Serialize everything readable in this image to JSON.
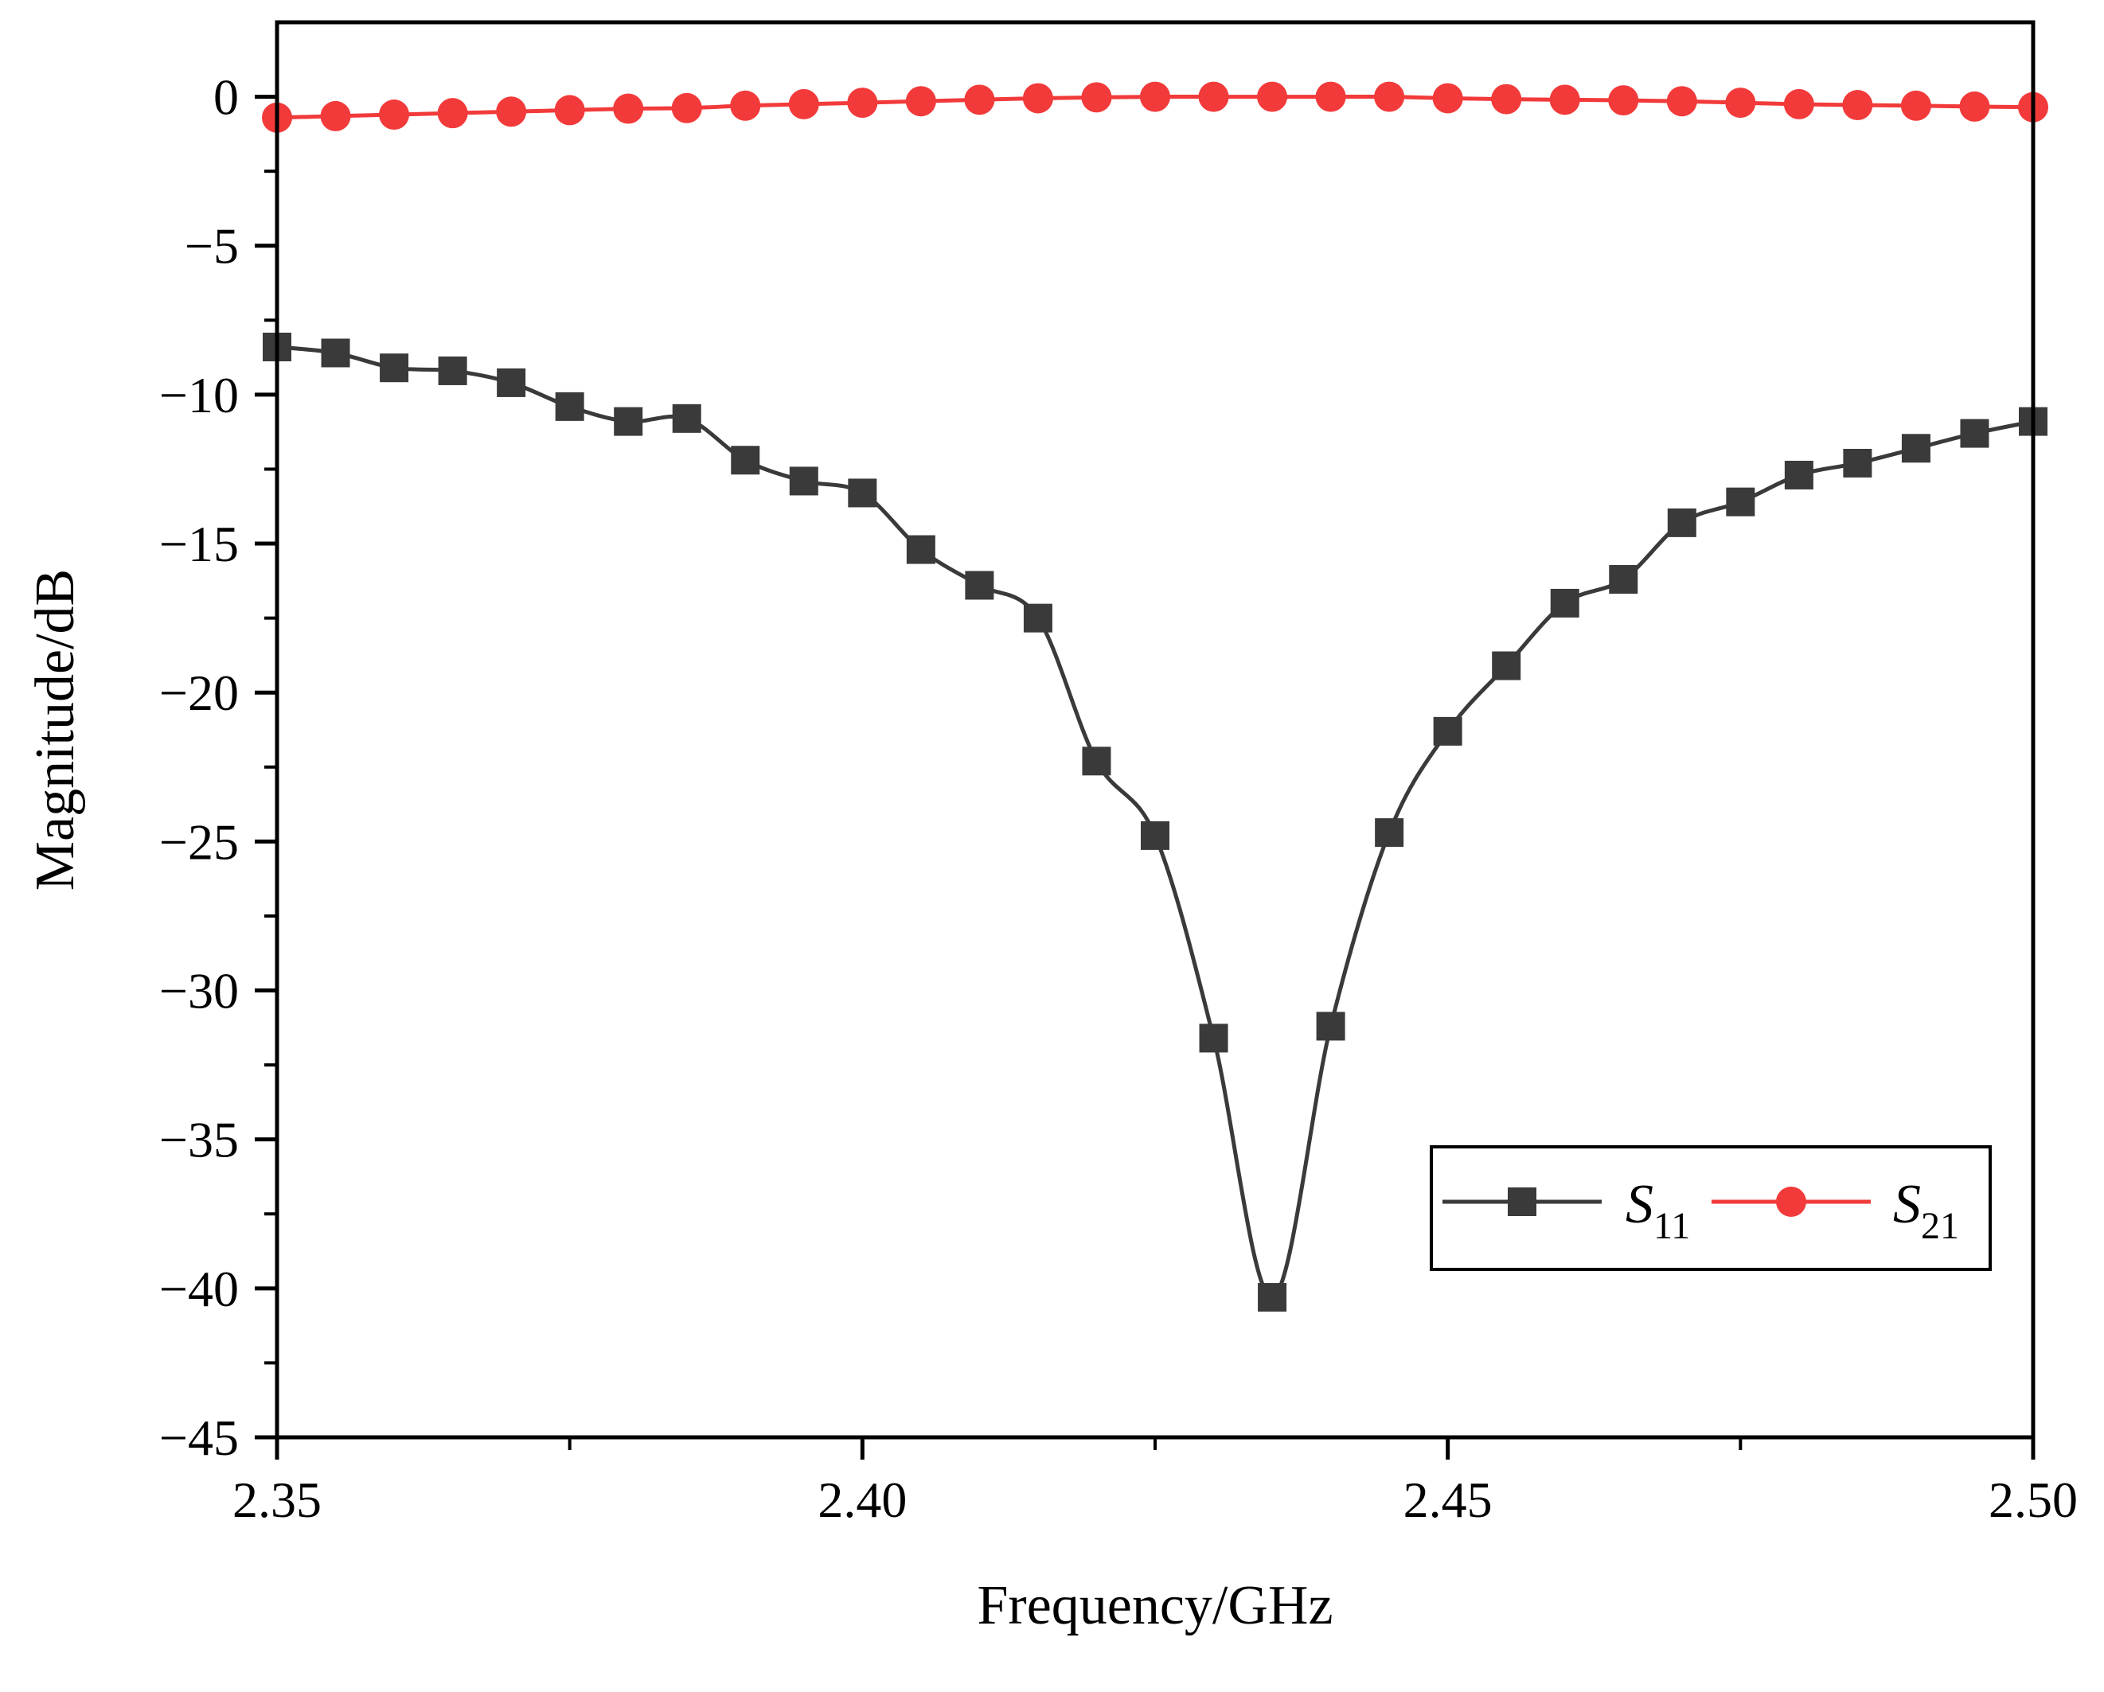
{
  "chart_data": {
    "type": "line",
    "xlabel": "Frequency/GHz",
    "ylabel": "Magnitude/dB",
    "xlim": [
      2.35,
      2.5
    ],
    "ylim": [
      -45,
      2.5
    ],
    "x_ticks": [
      2.35,
      2.4,
      2.45,
      2.5
    ],
    "x_tick_labels": [
      "2.35",
      "2.40",
      "2.45",
      "2.50"
    ],
    "y_ticks": [
      0,
      -5,
      -10,
      -15,
      -20,
      -25,
      -30,
      -35,
      -40,
      -45
    ],
    "y_tick_labels": [
      "0",
      "−5",
      "−10",
      "−15",
      "−20",
      "−25",
      "−30",
      "−35",
      "−40",
      "−45"
    ],
    "grid": false,
    "legend_position": "lower-right",
    "x": [
      2.35,
      2.355,
      2.36,
      2.365,
      2.37,
      2.375,
      2.38,
      2.385,
      2.39,
      2.395,
      2.4,
      2.405,
      2.41,
      2.415,
      2.42,
      2.425,
      2.43,
      2.435,
      2.44,
      2.445,
      2.45,
      2.455,
      2.46,
      2.465,
      2.47,
      2.475,
      2.48,
      2.485,
      2.49,
      2.495,
      2.5
    ],
    "series": [
      {
        "name": "S11",
        "label_main": "S",
        "label_sub": "11",
        "color": "#3a3a3a",
        "marker": "square",
        "values": [
          -8.4,
          -8.6,
          -9.1,
          -9.2,
          -9.6,
          -10.4,
          -10.9,
          -10.8,
          -12.2,
          -12.9,
          -13.3,
          -15.2,
          -16.4,
          -17.5,
          -22.3,
          -24.8,
          -31.6,
          -40.3,
          -31.2,
          -24.7,
          -21.3,
          -19.1,
          -17.0,
          -16.2,
          -14.3,
          -13.6,
          -12.7,
          -12.3,
          -11.8,
          -11.3,
          -10.9
        ]
      },
      {
        "name": "S21",
        "label_main": "S",
        "label_sub": "21",
        "color": "#f23a3a",
        "marker": "circle",
        "values": [
          -0.7,
          -0.65,
          -0.6,
          -0.55,
          -0.5,
          -0.45,
          -0.4,
          -0.38,
          -0.3,
          -0.25,
          -0.2,
          -0.15,
          -0.1,
          -0.05,
          -0.02,
          0.0,
          0.0,
          0.0,
          0.0,
          0.0,
          -0.05,
          -0.08,
          -0.1,
          -0.12,
          -0.15,
          -0.2,
          -0.25,
          -0.28,
          -0.3,
          -0.33,
          -0.35
        ]
      }
    ]
  }
}
